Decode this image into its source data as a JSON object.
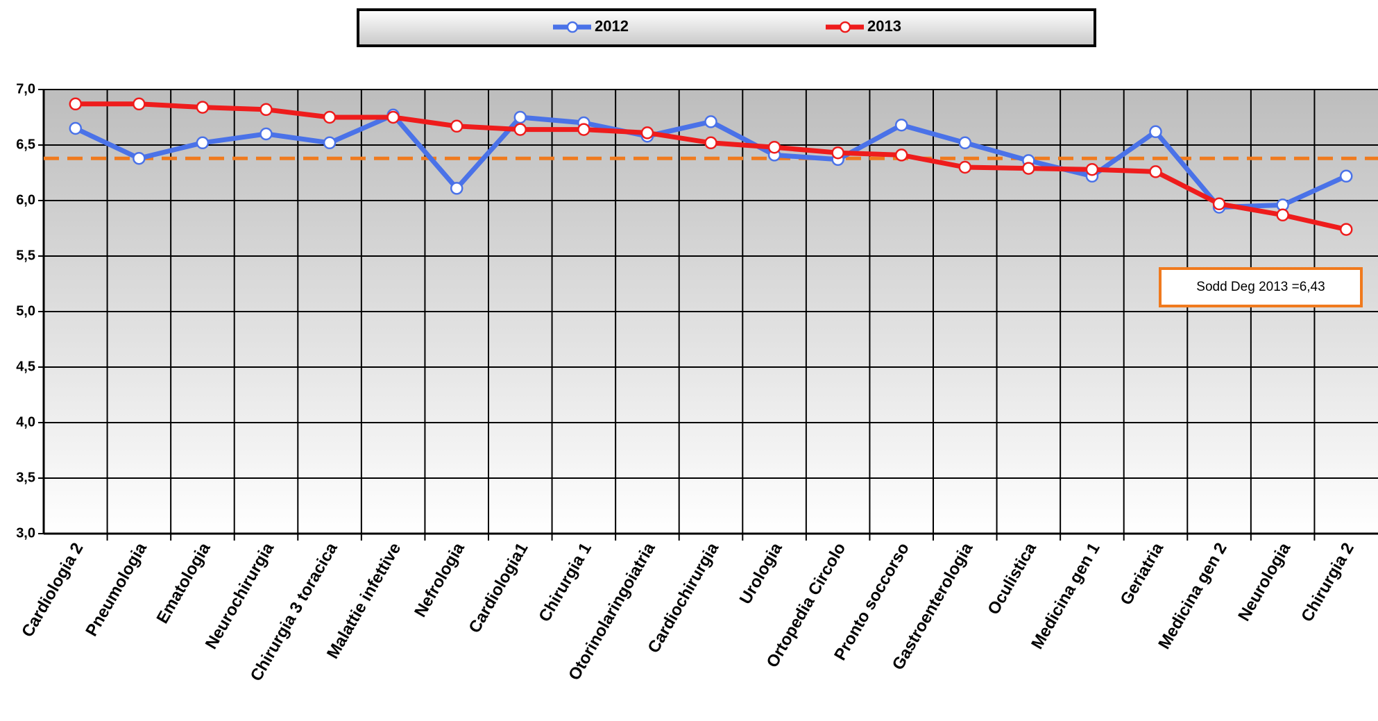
{
  "chart_data": {
    "type": "line",
    "categories": [
      "Cardiologia 2",
      "Pneumologia",
      "Ematologia",
      "Neurochirurgia",
      "Chirurgia 3 toracica",
      "Malattie infettive",
      "Nefrologia",
      "Cardiologia1",
      "Chirurgia 1",
      "Otorinolaringoiatria",
      "Cardiochirurgia",
      "Urologia",
      "Ortopedia Circolo",
      "Pronto soccorso",
      "Gastroenterologia",
      "Oculistica",
      "Medicina gen 1",
      "Geriatria",
      "Medicina gen 2",
      "Neurologia",
      "Chirurgia 2"
    ],
    "series": [
      {
        "name": "2012",
        "color": "#4a72e8",
        "values": [
          6.65,
          6.38,
          6.52,
          6.6,
          6.52,
          6.77,
          6.11,
          6.75,
          6.7,
          6.58,
          6.71,
          6.41,
          6.37,
          6.68,
          6.52,
          6.36,
          6.22,
          6.62,
          5.94,
          5.96,
          6.22
        ]
      },
      {
        "name": "2013",
        "color": "#ee1c1c",
        "values": [
          6.87,
          6.87,
          6.84,
          6.82,
          6.75,
          6.75,
          6.67,
          6.64,
          6.64,
          6.61,
          6.52,
          6.48,
          6.43,
          6.41,
          6.3,
          6.29,
          6.28,
          6.26,
          5.97,
          5.87,
          5.74
        ]
      }
    ],
    "ylim": [
      3,
      7
    ],
    "yticks": [
      {
        "value": 3,
        "label": "3,0"
      },
      {
        "value": 3.5,
        "label": "3,5"
      },
      {
        "value": 4,
        "label": "4,0"
      },
      {
        "value": 4.5,
        "label": "4,5"
      },
      {
        "value": 5,
        "label": "5,0"
      },
      {
        "value": 5.5,
        "label": "5,5"
      },
      {
        "value": 6,
        "label": "6,0"
      },
      {
        "value": 6.5,
        "label": "6,5"
      },
      {
        "value": 7,
        "label": "7,0"
      }
    ],
    "grid": true,
    "reference_line": {
      "value": 6.38,
      "color": "#f07a1e"
    },
    "annotation": "Sodd Deg 2013 =6,43",
    "legend": "top"
  }
}
